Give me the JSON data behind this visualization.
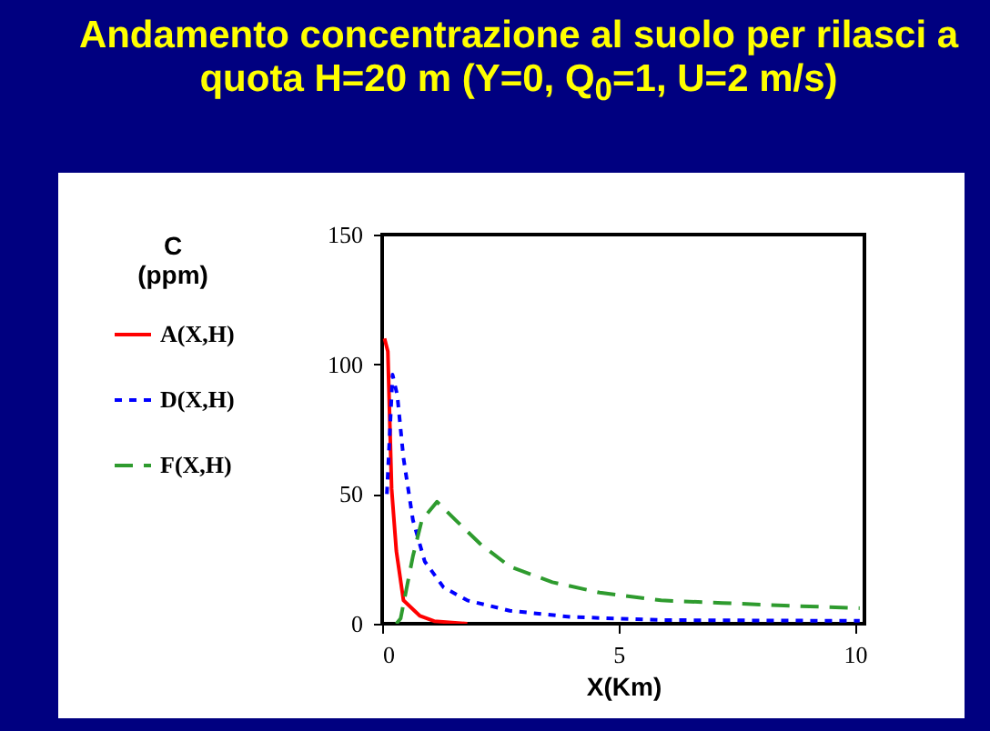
{
  "chart_data": {
    "type": "line",
    "title": "Andamento concentrazione al suolo per rilasci a quota H=20 m (Y=0, Q$_{0}$=1, U=2 m/s)",
    "xlabel": "X(Km)",
    "legend_title": "C (ppm)",
    "xlim": [
      0,
      10.2
    ],
    "xticks": [
      0,
      5,
      10
    ],
    "ylim": [
      0,
      150
    ],
    "yticks": [
      0,
      50,
      100,
      150
    ],
    "grid": false,
    "legend": "left",
    "marker": "none",
    "series": [
      {
        "name": "A(X,H)",
        "color": "#ff0000",
        "line_style": "solid",
        "x": [
          0.05,
          0.12,
          0.2,
          0.3,
          0.45,
          0.8,
          1.1,
          1.8
        ],
        "values": [
          110,
          105,
          52,
          28,
          9,
          3,
          1,
          0
        ]
      },
      {
        "name": "D(X,H)",
        "color": "#0000ff",
        "line_style": "dotted",
        "x": [
          0.1,
          0.22,
          0.32,
          0.45,
          0.65,
          0.9,
          1.3,
          1.8,
          2.7,
          4,
          5.9,
          10.1
        ],
        "values": [
          50,
          96,
          88,
          64,
          40,
          24,
          14,
          9,
          5,
          2.6,
          1.4,
          1.1
        ]
      },
      {
        "name": "F(X,H)",
        "color": "#2e9b2e",
        "line_style": "dashed",
        "x": [
          0.3,
          0.39,
          0.65,
          0.84,
          1.16,
          1.55,
          2.06,
          2.7,
          3.6,
          4.6,
          5.9,
          7.2,
          8.5,
          10.1
        ],
        "values": [
          0,
          2,
          26,
          40,
          47,
          40,
          31,
          22,
          16,
          12,
          9,
          8,
          7,
          6
        ]
      }
    ]
  }
}
